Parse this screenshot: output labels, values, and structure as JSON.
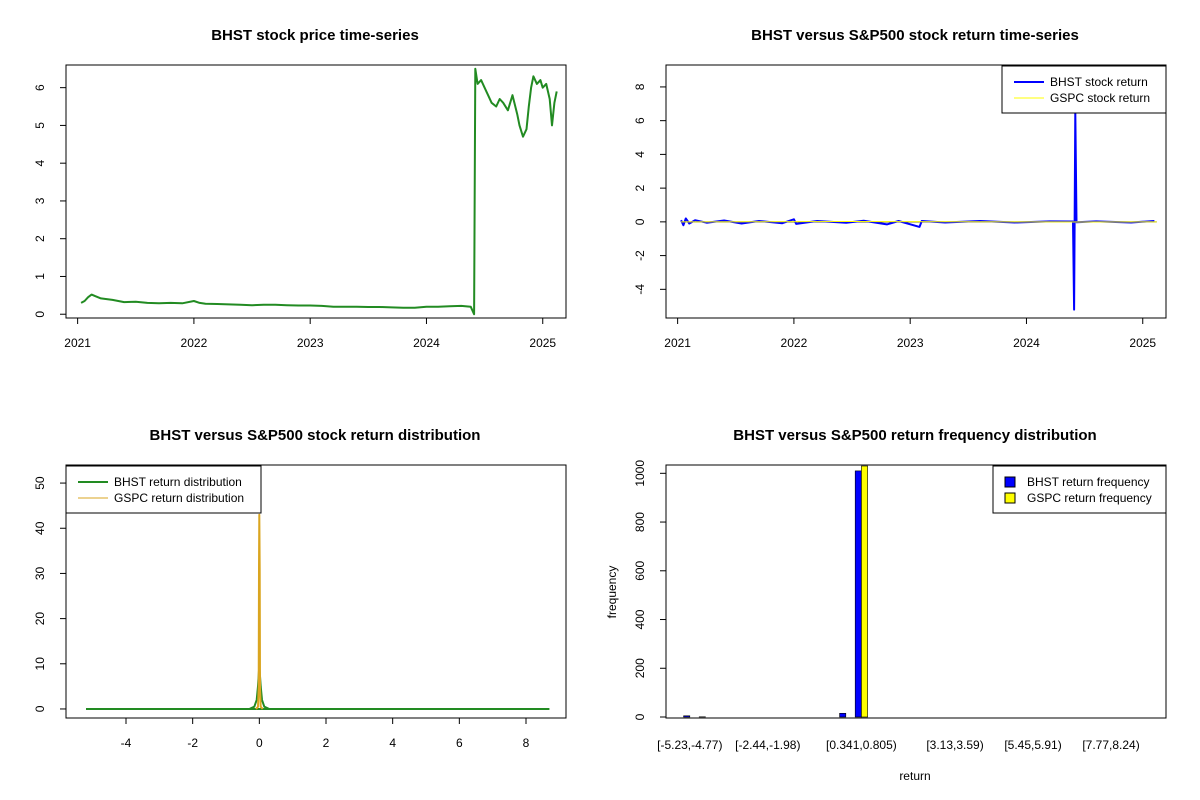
{
  "chart_data": [
    {
      "type": "line",
      "title": "BHST stock price time-series",
      "x_tick_labels": [
        "2021",
        "2022",
        "2023",
        "2024",
        "2025"
      ],
      "y_ticks": [
        0,
        1,
        2,
        3,
        4,
        5,
        6
      ],
      "ylim": [
        -0.1,
        6.6
      ],
      "xlim": [
        2020.9,
        2025.2
      ],
      "series": [
        {
          "color": "#228B22",
          "x": [
            2021.03,
            2021.06,
            2021.09,
            2021.12,
            2021.15,
            2021.2,
            2021.3,
            2021.4,
            2021.5,
            2021.6,
            2021.7,
            2021.8,
            2021.9,
            2022.0,
            2022.05,
            2022.1,
            2022.2,
            2022.3,
            2022.4,
            2022.5,
            2022.6,
            2022.7,
            2022.8,
            2022.9,
            2023.0,
            2023.1,
            2023.2,
            2023.3,
            2023.4,
            2023.5,
            2023.6,
            2023.7,
            2023.8,
            2023.9,
            2024.0,
            2024.1,
            2024.2,
            2024.3,
            2024.38,
            2024.41,
            2024.42,
            2024.44,
            2024.47,
            2024.5,
            2024.53,
            2024.56,
            2024.6,
            2024.63,
            2024.66,
            2024.7,
            2024.74,
            2024.78,
            2024.8,
            2024.83,
            2024.86,
            2024.88,
            2024.9,
            2024.92,
            2024.95,
            2024.98,
            2025.0,
            2025.03,
            2025.06,
            2025.08,
            2025.1,
            2025.12
          ],
          "y": [
            0.3,
            0.35,
            0.45,
            0.52,
            0.48,
            0.42,
            0.38,
            0.32,
            0.33,
            0.3,
            0.29,
            0.3,
            0.29,
            0.35,
            0.3,
            0.28,
            0.27,
            0.26,
            0.25,
            0.24,
            0.25,
            0.25,
            0.24,
            0.23,
            0.23,
            0.22,
            0.2,
            0.2,
            0.2,
            0.19,
            0.19,
            0.18,
            0.17,
            0.17,
            0.2,
            0.2,
            0.21,
            0.22,
            0.2,
            0.0,
            6.5,
            6.1,
            6.2,
            6.0,
            5.8,
            5.6,
            5.5,
            5.7,
            5.6,
            5.4,
            5.8,
            5.3,
            5.0,
            4.7,
            4.9,
            5.5,
            6.0,
            6.3,
            6.1,
            6.2,
            6.0,
            6.1,
            5.7,
            5.0,
            5.6,
            5.9
          ]
        }
      ]
    },
    {
      "type": "line",
      "title": "BHST versus S&P500 stock return time-series",
      "x_tick_labels": [
        "2021",
        "2022",
        "2023",
        "2024",
        "2025"
      ],
      "y_ticks": [
        -4,
        -2,
        0,
        2,
        4,
        6,
        8
      ],
      "ylim": [
        -5.7,
        9.3
      ],
      "xlim": [
        2020.9,
        2025.2
      ],
      "legend": {
        "position": "top-right",
        "entries": [
          "BHST stock return",
          "GSPC stock return"
        ],
        "colors": [
          "#0000FF",
          "#FFFF00"
        ]
      },
      "series": [
        {
          "name": "BHST stock return",
          "color": "#0000FF",
          "x": [
            2021.03,
            2021.05,
            2021.07,
            2021.1,
            2021.15,
            2021.25,
            2021.4,
            2021.55,
            2021.7,
            2021.9,
            2022.0,
            2022.02,
            2022.2,
            2022.45,
            2022.6,
            2022.8,
            2022.9,
            2023.08,
            2023.1,
            2023.3,
            2023.6,
            2023.9,
            2024.2,
            2024.4,
            2024.41,
            2024.42,
            2024.43,
            2024.6,
            2024.9,
            2025.1
          ],
          "y": [
            0.1,
            -0.2,
            0.2,
            -0.1,
            0.1,
            -0.05,
            0.08,
            -0.1,
            0.05,
            -0.08,
            0.15,
            -0.12,
            0.05,
            -0.05,
            0.06,
            -0.15,
            0.05,
            -0.3,
            0.05,
            -0.04,
            0.05,
            -0.04,
            0.03,
            0.02,
            -5.2,
            6.5,
            -0.02,
            0.03,
            -0.04,
            0.05
          ]
        },
        {
          "name": "GSPC stock return",
          "color": "#FFFF00",
          "x": [
            2021.03,
            2022.5,
            2024.5,
            2025.12
          ],
          "y": [
            0.0,
            0.02,
            -0.01,
            0.0
          ]
        }
      ]
    },
    {
      "type": "line",
      "title": "BHST versus S&P500 stock return distribution",
      "x_ticks": [
        -4,
        -2,
        0,
        2,
        4,
        6,
        8
      ],
      "y_ticks": [
        0,
        10,
        20,
        30,
        40,
        50
      ],
      "xlim": [
        -5.8,
        9.2
      ],
      "ylim": [
        -2,
        54
      ],
      "legend": {
        "position": "top-left",
        "entries": [
          "BHST return distribution",
          "GSPC return distribution"
        ],
        "colors": [
          "#228B22",
          "#DAA520"
        ]
      },
      "series": [
        {
          "name": "BHST return distribution",
          "color": "#228B22",
          "x": [
            -5.2,
            -0.3,
            -0.15,
            -0.08,
            -0.04,
            0.0,
            0.04,
            0.08,
            0.15,
            0.3,
            8.7
          ],
          "y": [
            0,
            0,
            0.5,
            2,
            5,
            9.5,
            5,
            2,
            0.5,
            0,
            0
          ]
        },
        {
          "name": "GSPC return distribution",
          "color": "#DAA520",
          "x": [
            -0.1,
            -0.04,
            -0.02,
            -0.01,
            0.0,
            0.01,
            0.02,
            0.04,
            0.1
          ],
          "y": [
            0,
            0.5,
            5,
            31,
            43,
            31,
            5,
            0.5,
            0
          ]
        }
      ]
    },
    {
      "type": "bar",
      "title": "BHST versus S&P500 return frequency distribution",
      "xlabel": "return",
      "ylabel": "frequency",
      "y_ticks": [
        0,
        200,
        400,
        600,
        800,
        1000
      ],
      "ylim": [
        0,
        1030
      ],
      "category_labels_shown": [
        "[-5.23,-4.77)",
        "[-2.44,-1.98)",
        "[0.341,0.805)",
        "[3.13,3.59)",
        "[5.45,5.91)",
        "[7.77,8.24)"
      ],
      "legend": {
        "position": "top-right",
        "entries": [
          "BHST return frequency",
          "GSPC return frequency"
        ],
        "colors": [
          "#0000FF",
          "#FFFF00"
        ]
      },
      "series": [
        {
          "name": "BHST return frequency",
          "color": "#0000FF",
          "values": [
            5,
            1,
            0,
            0,
            0,
            0,
            0,
            0,
            0,
            0,
            15,
            1010,
            0,
            0,
            0,
            0,
            0,
            0,
            0,
            0,
            0,
            0,
            0,
            0,
            0,
            0,
            0,
            0,
            0,
            0
          ]
        },
        {
          "name": "GSPC return frequency",
          "color": "#FFFF00",
          "values": [
            0,
            0,
            0,
            0,
            0,
            0,
            0,
            0,
            0,
            0,
            0,
            1030,
            0,
            0,
            0,
            0,
            0,
            0,
            0,
            0,
            0,
            0,
            0,
            0,
            0,
            0,
            0,
            0,
            0,
            0
          ]
        }
      ]
    }
  ]
}
